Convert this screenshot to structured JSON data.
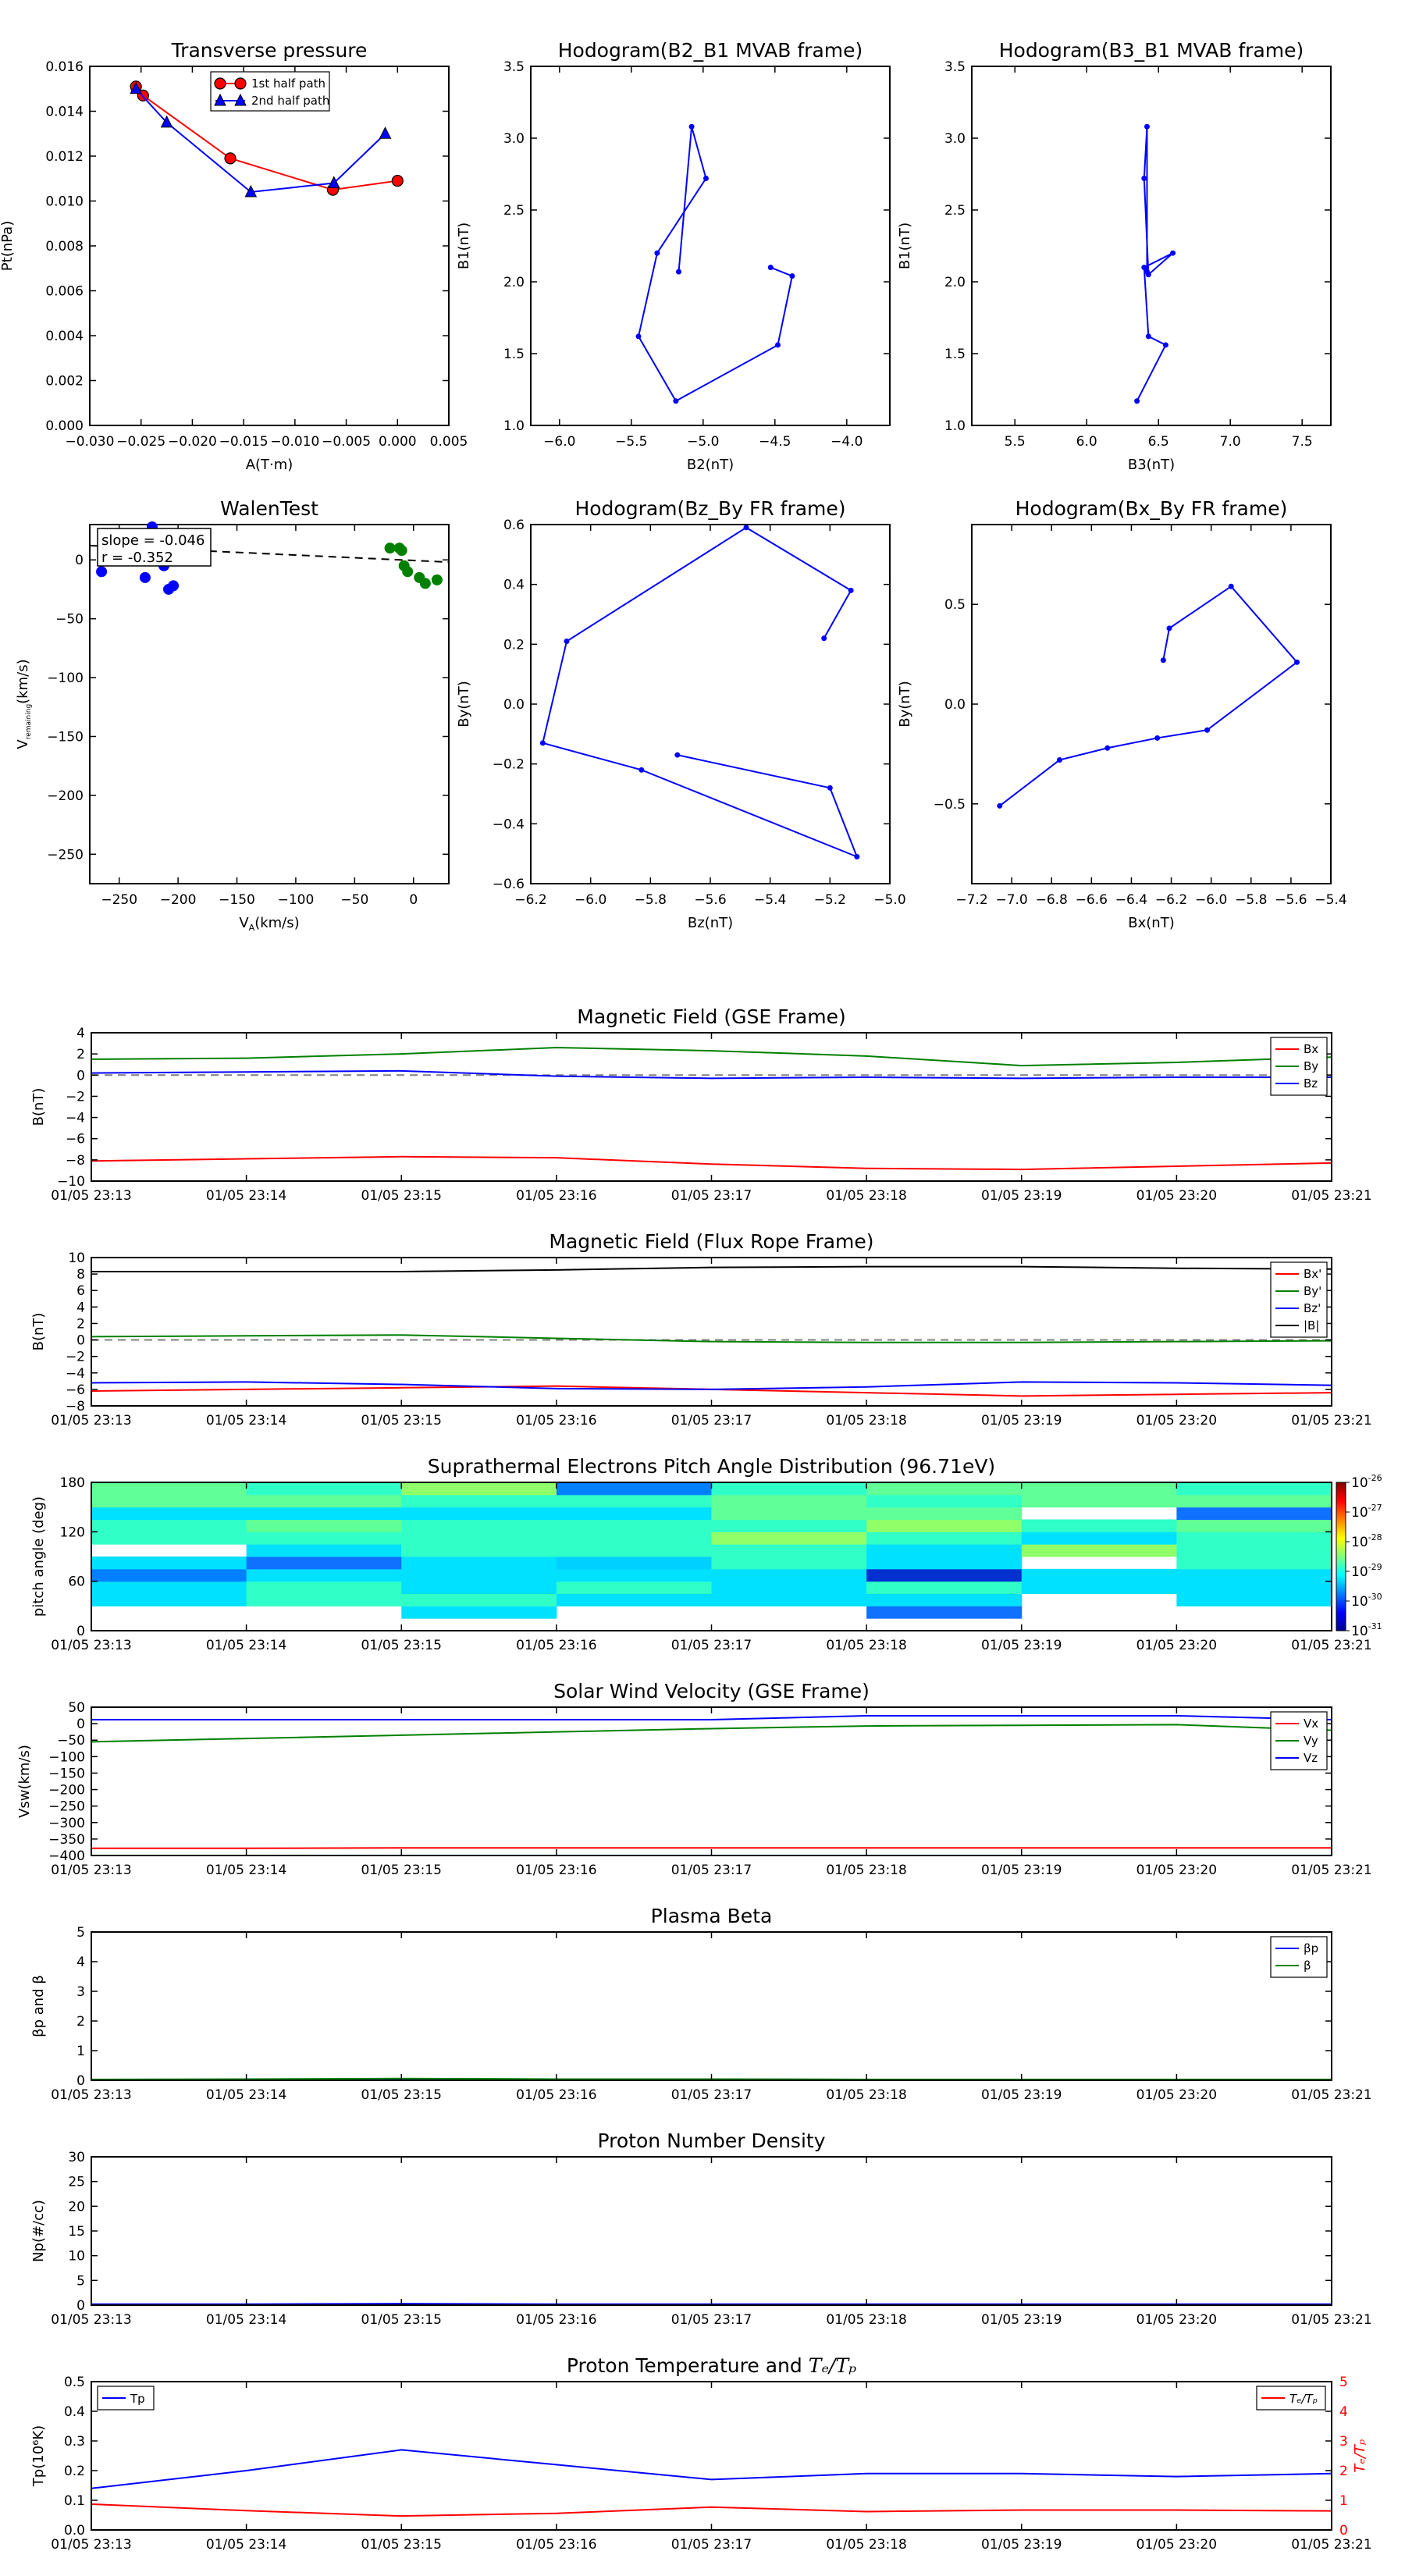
{
  "time_ticks": [
    "01/05 23:13",
    "01/05 23:14",
    "01/05 23:15",
    "01/05 23:16",
    "01/05 23:17",
    "01/05 23:18",
    "01/05 23:19",
    "01/05 23:20",
    "01/05 23:21"
  ],
  "colors": {
    "red": "#ff0000",
    "green": "#008000",
    "blue": "#0000ff",
    "black": "#000000",
    "gray": "#808080"
  },
  "chart_data": [
    {
      "id": "transverse-pressure",
      "type": "line",
      "title": "Transverse pressure",
      "xlabel": "A(T·m)",
      "ylabel": "Pt(nPa)",
      "xlim": [
        -0.03,
        0.005
      ],
      "ylim": [
        0,
        0.016
      ],
      "xticks": [
        -0.03,
        -0.025,
        -0.02,
        -0.015,
        -0.01,
        -0.005,
        0.0,
        0.005
      ],
      "xtick_labels": [
        "−0.030",
        "−0.025",
        "−0.020",
        "−0.015",
        "−0.010",
        "−0.005",
        "0.000",
        "0.005"
      ],
      "yticks": [
        0,
        0.002,
        0.004,
        0.006,
        0.008,
        0.01,
        0.012,
        0.014,
        0.016
      ],
      "ytick_labels": [
        "0.000",
        "0.002",
        "0.004",
        "0.006",
        "0.008",
        "0.010",
        "0.012",
        "0.014",
        "0.016"
      ],
      "legend_position": "top-center",
      "series": [
        {
          "name": "1st half path",
          "color": "#ff0000",
          "marker": "circle",
          "x": [
            -0.0255,
            -0.0248,
            -0.0163,
            -0.0063,
            0.0
          ],
          "y": [
            0.0151,
            0.0147,
            0.0119,
            0.0105,
            0.0109
          ]
        },
        {
          "name": "2nd half path",
          "color": "#0000ff",
          "marker": "triangle",
          "x": [
            -0.0255,
            -0.0225,
            -0.0143,
            -0.0062,
            -0.0012
          ],
          "y": [
            0.015,
            0.0135,
            0.0104,
            0.0108,
            0.013
          ]
        }
      ]
    },
    {
      "id": "hodogram-b2-b1",
      "type": "line",
      "title": "Hodogram(B2_B1 MVAB frame)",
      "xlabel": "B2(nT)",
      "ylabel": "B1(nT)",
      "xlim": [
        -6.2,
        -3.7
      ],
      "ylim": [
        1.0,
        3.5
      ],
      "xticks": [
        -6.0,
        -5.5,
        -5.0,
        -4.5,
        -4.0
      ],
      "xtick_labels": [
        "−6.0",
        "−5.5",
        "−5.0",
        "−4.5",
        "−4.0"
      ],
      "yticks": [
        1.0,
        1.5,
        2.0,
        2.5,
        3.0,
        3.5
      ],
      "ytick_labels": [
        "1.0",
        "1.5",
        "2.0",
        "2.5",
        "3.0",
        "3.5"
      ],
      "series": [
        {
          "color": "#0000ff",
          "marker": "dot",
          "x": [
            -5.17,
            -5.08,
            -4.98,
            -5.32,
            -5.45,
            -5.19,
            -4.48,
            -4.38,
            -4.53
          ],
          "y": [
            2.07,
            3.08,
            2.72,
            2.2,
            1.62,
            1.17,
            1.56,
            2.04,
            2.1
          ]
        }
      ]
    },
    {
      "id": "hodogram-b3-b1",
      "type": "line",
      "title": "Hodogram(B3_B1 MVAB frame)",
      "xlabel": "B3(nT)",
      "ylabel": "B1(nT)",
      "xlim": [
        5.2,
        7.7
      ],
      "ylim": [
        1.0,
        3.5
      ],
      "xticks": [
        5.5,
        6.0,
        6.5,
        7.0,
        7.5
      ],
      "xtick_labels": [
        "5.5",
        "6.0",
        "6.5",
        "7.0",
        "7.5"
      ],
      "yticks": [
        1.0,
        1.5,
        2.0,
        2.5,
        3.0,
        3.5
      ],
      "ytick_labels": [
        "1.0",
        "1.5",
        "2.0",
        "2.5",
        "3.0",
        "3.5"
      ],
      "series": [
        {
          "color": "#0000ff",
          "marker": "dot",
          "x": [
            6.42,
            6.42,
            6.4,
            6.43,
            6.6,
            6.4,
            6.43,
            6.55,
            6.35
          ],
          "y": [
            2.07,
            3.08,
            2.72,
            2.05,
            2.2,
            2.1,
            1.62,
            1.56,
            1.17
          ]
        }
      ]
    },
    {
      "id": "walen-test",
      "type": "scatter",
      "title": "WalenTest",
      "xlabel": "V_A(km/s)",
      "ylabel": "V_remaining(km/s)",
      "annotation": [
        "slope = -0.046",
        "r = -0.352"
      ],
      "xlim": [
        -275,
        30
      ],
      "ylim": [
        -275,
        30
      ],
      "xticks": [
        -250,
        -200,
        -150,
        -100,
        -50,
        0
      ],
      "xtick_labels": [
        "−250",
        "−200",
        "−150",
        "−100",
        "−50",
        "0"
      ],
      "yticks": [
        -250,
        -200,
        -150,
        -100,
        -50,
        0
      ],
      "ytick_labels": [
        "−250",
        "−200",
        "−150",
        "−100",
        "−50",
        "0"
      ],
      "fit": {
        "slope": -0.046,
        "intercept": -0.5
      },
      "series": [
        {
          "color": "#0000ff",
          "x": [
            -265,
            -228,
            -222,
            -212,
            -208,
            -204
          ],
          "y": [
            -10,
            -15,
            28,
            -5,
            -25,
            -22
          ]
        },
        {
          "color": "#008000",
          "x": [
            -20,
            -12,
            -10,
            -8,
            -5,
            5,
            10,
            20
          ],
          "y": [
            10,
            10,
            8,
            -5,
            -10,
            -15,
            -20,
            -17
          ]
        }
      ]
    },
    {
      "id": "hodogram-bz-by",
      "type": "line",
      "title": "Hodogram(Bz_By FR frame)",
      "xlabel": "Bz(nT)",
      "ylabel": "By(nT)",
      "xlim": [
        -6.2,
        -5.0
      ],
      "ylim": [
        -0.6,
        0.6
      ],
      "xticks": [
        -6.2,
        -6.0,
        -5.8,
        -5.6,
        -5.4,
        -5.2,
        -5.0
      ],
      "xtick_labels": [
        "−6.2",
        "−6.0",
        "−5.8",
        "−5.6",
        "−5.4",
        "−5.2",
        "−5.0"
      ],
      "yticks": [
        -0.6,
        -0.4,
        -0.2,
        0.0,
        0.2,
        0.4,
        0.6
      ],
      "ytick_labels": [
        "−0.6",
        "−0.4",
        "−0.2",
        "0.0",
        "0.2",
        "0.4",
        "0.6"
      ],
      "series": [
        {
          "color": "#0000ff",
          "marker": "dot",
          "x": [
            -5.22,
            -5.13,
            -5.48,
            -6.08,
            -6.16,
            -5.83,
            -5.11,
            -5.2,
            -5.71
          ],
          "y": [
            0.22,
            0.38,
            0.59,
            0.21,
            -0.13,
            -0.22,
            -0.51,
            -0.28,
            -0.17
          ]
        }
      ]
    },
    {
      "id": "hodogram-bx-by",
      "type": "line",
      "title": "Hodogram(Bx_By FR frame)",
      "xlabel": "Bx(nT)",
      "ylabel": "By(nT)",
      "xlim": [
        -7.2,
        -5.4
      ],
      "ylim": [
        -0.9,
        0.9
      ],
      "xticks": [
        -7.2,
        -7.0,
        -6.8,
        -6.6,
        -6.4,
        -6.2,
        -6.0,
        -5.8,
        -5.6,
        -5.4
      ],
      "xtick_labels": [
        "−7.2",
        "−7.0",
        "−6.8",
        "−6.6",
        "−6.4",
        "−6.2",
        "−6.0",
        "−5.8",
        "−5.6",
        "−5.4"
      ],
      "yticks": [
        -0.5,
        0.0,
        0.5
      ],
      "ytick_labels": [
        "−0.5",
        "0.0",
        "0.5"
      ],
      "series": [
        {
          "color": "#0000ff",
          "marker": "dot",
          "x": [
            -6.24,
            -6.21,
            -5.9,
            -5.57,
            -6.02,
            -6.27,
            -6.52,
            -6.76,
            -7.06
          ],
          "y": [
            0.22,
            0.38,
            0.59,
            0.21,
            -0.13,
            -0.17,
            -0.22,
            -0.28,
            -0.51
          ]
        }
      ]
    },
    {
      "id": "magnetic-field-gse",
      "type": "line",
      "title": "Magnetic Field (GSE Frame)",
      "ylabel": "B(nT)",
      "x": [
        0,
        1,
        2,
        3,
        4,
        5,
        6,
        7,
        8
      ],
      "xlim": [
        0,
        8
      ],
      "ylim": [
        -10,
        4
      ],
      "yticks": [
        -10,
        -8,
        -6,
        -4,
        -2,
        0,
        2,
        4
      ],
      "ytick_labels": [
        "−10",
        "−8",
        "−6",
        "−4",
        "−2",
        "0",
        "2",
        "4"
      ],
      "zero_line": true,
      "legend_position": "top-right",
      "series": [
        {
          "name": "Bx",
          "color": "#ff0000",
          "values": [
            -8.1,
            -7.9,
            -7.7,
            -7.8,
            -8.4,
            -8.8,
            -8.9,
            -8.6,
            -8.3
          ]
        },
        {
          "name": "By",
          "color": "#008000",
          "values": [
            1.5,
            1.6,
            2.0,
            2.6,
            2.3,
            1.8,
            0.9,
            1.2,
            1.7
          ]
        },
        {
          "name": "Bz",
          "color": "#0000ff",
          "values": [
            0.2,
            0.3,
            0.4,
            -0.1,
            -0.3,
            -0.2,
            -0.3,
            -0.2,
            -0.2
          ]
        }
      ]
    },
    {
      "id": "magnetic-field-fr",
      "type": "line",
      "title": "Magnetic Field (Flux Rope Frame)",
      "ylabel": "B(nT)",
      "x": [
        0,
        1,
        2,
        3,
        4,
        5,
        6,
        7,
        8
      ],
      "xlim": [
        0,
        8
      ],
      "ylim": [
        -8,
        10
      ],
      "yticks": [
        -8,
        -6,
        -4,
        -2,
        0,
        2,
        4,
        6,
        8,
        10
      ],
      "ytick_labels": [
        "−8",
        "−6",
        "−4",
        "−2",
        "0",
        "2",
        "4",
        "6",
        "8",
        "10"
      ],
      "zero_line": true,
      "legend_position": "top-right",
      "series": [
        {
          "name": "Bx'",
          "color": "#ff0000",
          "values": [
            -6.2,
            -6.0,
            -5.8,
            -5.6,
            -6.0,
            -6.4,
            -6.8,
            -6.6,
            -6.4
          ]
        },
        {
          "name": "By'",
          "color": "#008000",
          "values": [
            0.4,
            0.5,
            0.6,
            0.2,
            -0.2,
            -0.3,
            -0.3,
            -0.2,
            -0.1
          ]
        },
        {
          "name": "Bz'",
          "color": "#0000ff",
          "values": [
            -5.2,
            -5.1,
            -5.4,
            -5.9,
            -6.0,
            -5.7,
            -5.1,
            -5.2,
            -5.5
          ]
        },
        {
          "name": "|B|",
          "color": "#000000",
          "values": [
            8.3,
            8.3,
            8.3,
            8.5,
            8.8,
            8.9,
            8.9,
            8.7,
            8.6
          ]
        }
      ]
    },
    {
      "id": "pitch-angle",
      "type": "heatmap",
      "title": "Suprathermal Electrons Pitch Angle Distribution (96.71eV)",
      "ylabel": "pitch angle (deg)",
      "xlim": [
        0,
        8
      ],
      "ylim": [
        0,
        180
      ],
      "yticks": [
        0,
        60,
        120,
        180
      ],
      "ytick_labels": [
        "0",
        "60",
        "120",
        "180"
      ],
      "colorbar_ticks": [
        "10",
        "10",
        "10",
        "10",
        "10",
        "10"
      ],
      "colorbar_exponents": [
        "-26",
        "-27",
        "-28",
        "-29",
        "-30",
        "-31"
      ],
      "bins_deg": [
        0,
        15,
        30,
        45,
        60,
        75,
        90,
        105,
        120,
        135,
        150,
        165,
        180
      ],
      "levels": [
        [
          -1,
          -1,
          4,
          4,
          2,
          4,
          -1,
          5,
          5,
          4,
          6,
          6
        ],
        [
          -1,
          -1,
          5,
          5,
          4,
          9,
          4,
          5,
          6,
          4,
          6,
          5
        ],
        [
          -1,
          4,
          5,
          4,
          4,
          4,
          5,
          5,
          5,
          4,
          5,
          7
        ],
        [
          -1,
          -1,
          4,
          5,
          4,
          8,
          5,
          5,
          5,
          4,
          5,
          2
        ],
        [
          -1,
          -1,
          4,
          4,
          4,
          5,
          5,
          7,
          5,
          6,
          6,
          5
        ],
        [
          -1,
          9,
          4,
          5,
          10,
          4,
          4,
          5,
          7,
          6,
          5,
          6
        ],
        [
          -1,
          -1,
          -1,
          4,
          4,
          -1,
          7,
          4,
          5,
          -1,
          6,
          6
        ],
        [
          -1,
          -1,
          4,
          4,
          4,
          5,
          5,
          5,
          6,
          9,
          6,
          5
        ]
      ]
    },
    {
      "id": "solar-wind-velocity",
      "type": "line",
      "title": "Solar Wind Velocity (GSE Frame)",
      "ylabel": "Vsw(km/s)",
      "x": [
        0,
        1,
        2,
        3,
        4,
        5,
        6,
        7,
        8
      ],
      "xlim": [
        0,
        8
      ],
      "ylim": [
        -400,
        50
      ],
      "yticks": [
        -400,
        -350,
        -300,
        -250,
        -200,
        -150,
        -100,
        -50,
        0,
        50
      ],
      "ytick_labels": [
        "−400",
        "−350",
        "−300",
        "−250",
        "−200",
        "−150",
        "−100",
        "−50",
        "0",
        "50"
      ],
      "legend_position": "top-right",
      "series": [
        {
          "name": "Vx",
          "color": "#ff0000",
          "values": [
            -378,
            -378,
            -377,
            -377,
            -377,
            -377,
            -377,
            -377,
            -377
          ]
        },
        {
          "name": "Vy",
          "color": "#008000",
          "values": [
            -55,
            -45,
            -35,
            -25,
            -15,
            -7,
            -5,
            -3,
            -20
          ]
        },
        {
          "name": "Vz",
          "color": "#0000ff",
          "values": [
            12,
            12,
            12,
            12,
            12,
            24,
            24,
            24,
            12
          ]
        }
      ]
    },
    {
      "id": "plasma-beta",
      "type": "line",
      "title": "Plasma Beta",
      "ylabel": "βp and β",
      "x": [
        0,
        1,
        2,
        3,
        4,
        5,
        6,
        7,
        8
      ],
      "xlim": [
        0,
        8
      ],
      "ylim": [
        0,
        5
      ],
      "yticks": [
        0,
        1,
        2,
        3,
        4,
        5
      ],
      "ytick_labels": [
        "0",
        "1",
        "2",
        "3",
        "4",
        "5"
      ],
      "legend_position": "top-right",
      "series": [
        {
          "name": "βp",
          "color": "#0000ff",
          "values": [
            0.01,
            0.01,
            0.02,
            0.01,
            0.01,
            0.01,
            0.01,
            0.01,
            0.01
          ]
        },
        {
          "name": "β",
          "color": "#008000",
          "values": [
            0.03,
            0.04,
            0.06,
            0.04,
            0.04,
            0.03,
            0.03,
            0.03,
            0.03
          ]
        }
      ]
    },
    {
      "id": "proton-density",
      "type": "line",
      "title": "Proton Number Density",
      "ylabel": "Np(#/cc)",
      "x": [
        0,
        1,
        2,
        3,
        4,
        5,
        6,
        7,
        8
      ],
      "xlim": [
        0,
        8
      ],
      "ylim": [
        0,
        30
      ],
      "yticks": [
        0,
        5,
        10,
        15,
        20,
        25,
        30
      ],
      "ytick_labels": [
        "0",
        "5",
        "10",
        "15",
        "20",
        "25",
        "30"
      ],
      "series": [
        {
          "color": "#0000ff",
          "values": [
            0.2,
            0.2,
            0.3,
            0.2,
            0.2,
            0.2,
            0.2,
            0.2,
            0.2
          ]
        }
      ]
    },
    {
      "id": "proton-temperature",
      "type": "line",
      "title": "Proton Temperature and Te/Tp",
      "title_main": "Proton Temperature and ",
      "title_math": "Tₑ/Tₚ",
      "ylabel": "Tp(10⁶K)",
      "y2label": "Tₑ/Tₚ",
      "x": [
        0,
        1,
        2,
        3,
        4,
        5,
        6,
        7,
        8
      ],
      "xlim": [
        0,
        8
      ],
      "ylim": [
        0,
        0.5
      ],
      "y2lim": [
        0,
        5
      ],
      "yticks": [
        0,
        0.1,
        0.2,
        0.3,
        0.4,
        0.5
      ],
      "ytick_labels": [
        "0.0",
        "0.1",
        "0.2",
        "0.3",
        "0.4",
        "0.5"
      ],
      "y2ticks": [
        0,
        1,
        2,
        3,
        4,
        5
      ],
      "y2tick_labels": [
        "0",
        "1",
        "2",
        "3",
        "4",
        "5"
      ],
      "legend_left": "Tp",
      "legend_right": "Tₑ/Tₚ",
      "series": [
        {
          "name": "Tp",
          "color": "#0000ff",
          "axis": "left",
          "values": [
            0.14,
            0.2,
            0.27,
            0.22,
            0.17,
            0.19,
            0.19,
            0.18,
            0.19
          ]
        },
        {
          "name": "Te/Tp",
          "color": "#ff0000",
          "axis": "right",
          "values": [
            0.87,
            0.65,
            0.47,
            0.56,
            0.77,
            0.62,
            0.67,
            0.67,
            0.64
          ]
        }
      ]
    }
  ]
}
